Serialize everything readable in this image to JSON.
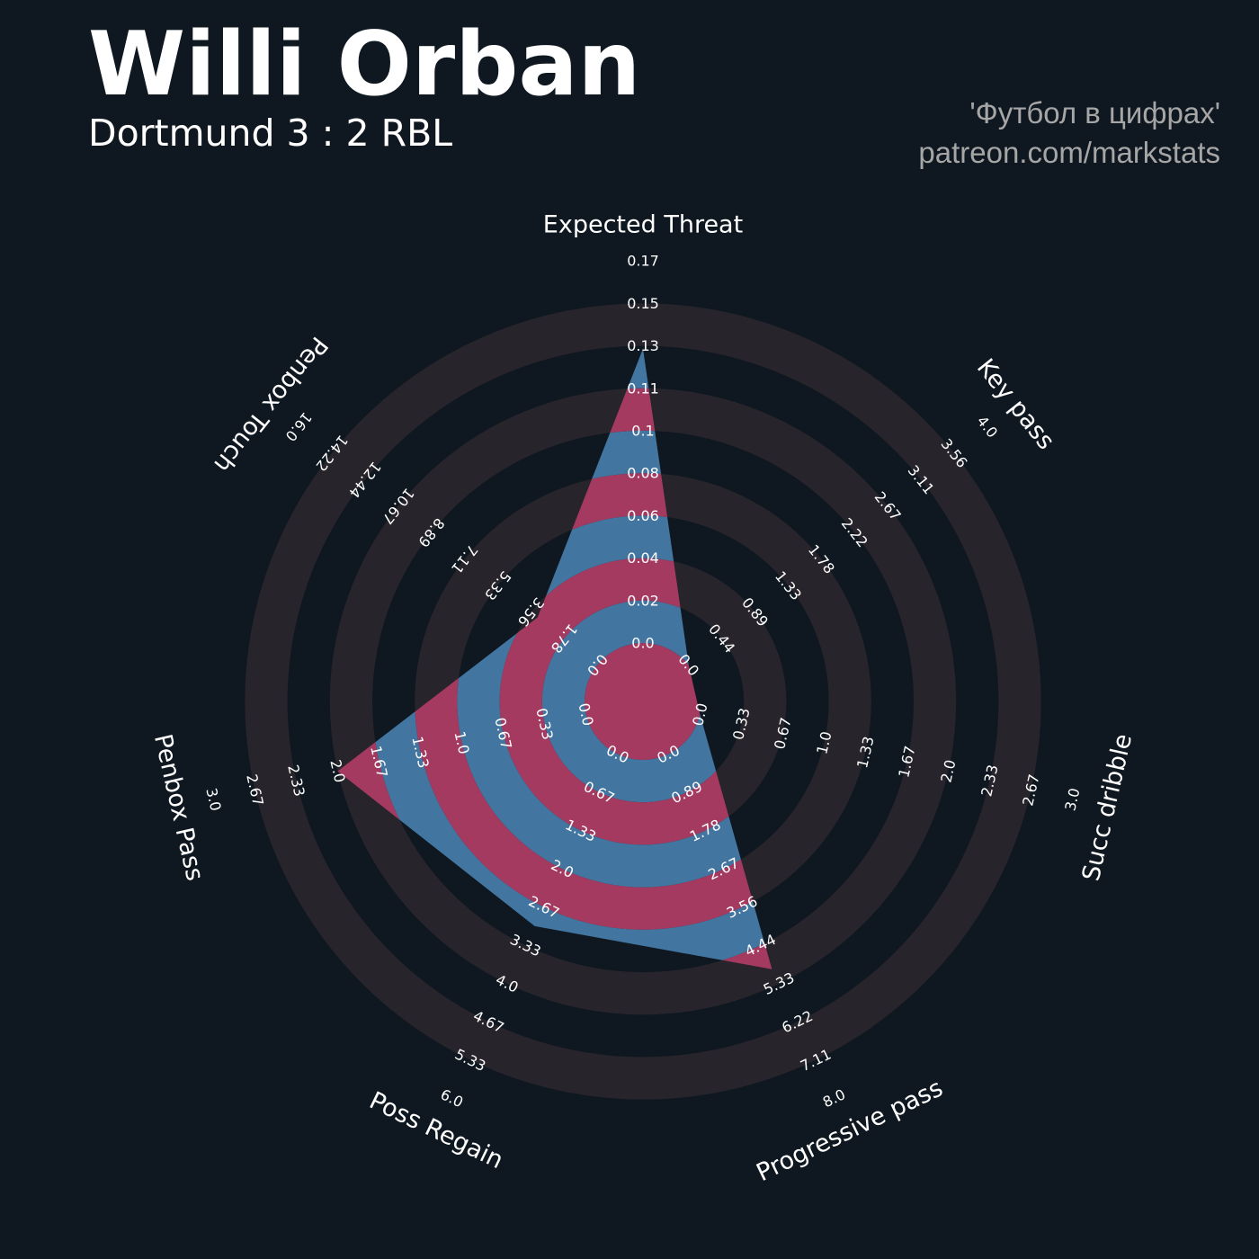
{
  "header": {
    "title": "Willi Orban",
    "subtitle": "Dortmund 3 : 2 RBL",
    "credit_line1": "'Футбол в цифрах'",
    "credit_line2": "patreon.com/markstats"
  },
  "colors": {
    "background": "#0f1820",
    "ring_band": "#28242b",
    "value_blue": "#4275a0",
    "value_red": "#a53a60",
    "text": "#ffffff",
    "credit_text": "#a6a6a6"
  },
  "chart_data": {
    "type": "radar",
    "rings": 9,
    "axes": [
      {
        "name": "Expected Threat",
        "value": 0.131,
        "min": 0.0,
        "max": 0.17,
        "ticks": [
          "0.0",
          "0.02",
          "0.04",
          "0.06",
          "0.08",
          "0.1",
          "0.11",
          "0.13",
          "0.15",
          "0.17"
        ]
      },
      {
        "name": "Key pass",
        "value": 0.0,
        "min": 0.0,
        "max": 4.0,
        "ticks": [
          "0.0",
          "0.44",
          "0.89",
          "1.33",
          "1.78",
          "2.22",
          "2.67",
          "3.11",
          "3.56",
          "4.0"
        ]
      },
      {
        "name": "Succ dribble",
        "value": 0.0,
        "min": 0.0,
        "max": 3.0,
        "ticks": [
          "0.0",
          "0.33",
          "0.67",
          "1.0",
          "1.33",
          "1.67",
          "2.0",
          "2.33",
          "2.67",
          "3.0"
        ]
      },
      {
        "name": "Progressive pass",
        "value": 5.0,
        "min": 0.0,
        "max": 8.0,
        "ticks": [
          "0.0",
          "0.89",
          "1.78",
          "2.67",
          "3.56",
          "4.44",
          "5.33",
          "6.22",
          "7.11",
          "8.0"
        ]
      },
      {
        "name": "Poss Regain",
        "value": 3.0,
        "min": 0.0,
        "max": 6.0,
        "ticks": [
          "0.0",
          "0.67",
          "1.33",
          "2.0",
          "2.67",
          "3.33",
          "4.0",
          "4.67",
          "5.33",
          "6.0"
        ]
      },
      {
        "name": "Penbox Pass",
        "value": 2.0,
        "min": 0.0,
        "max": 3.0,
        "ticks": [
          "0.0",
          "0.33",
          "0.67",
          "1.0",
          "1.33",
          "1.67",
          "2.0",
          "2.33",
          "2.67",
          "3.0"
        ]
      },
      {
        "name": "Penbox Touch",
        "value": 3.2,
        "min": 0.0,
        "max": 16.0,
        "ticks": [
          "0.0",
          "1.78",
          "3.56",
          "5.33",
          "7.11",
          "8.89",
          "10.67",
          "12.44",
          "14.22",
          "16.0"
        ]
      }
    ]
  }
}
